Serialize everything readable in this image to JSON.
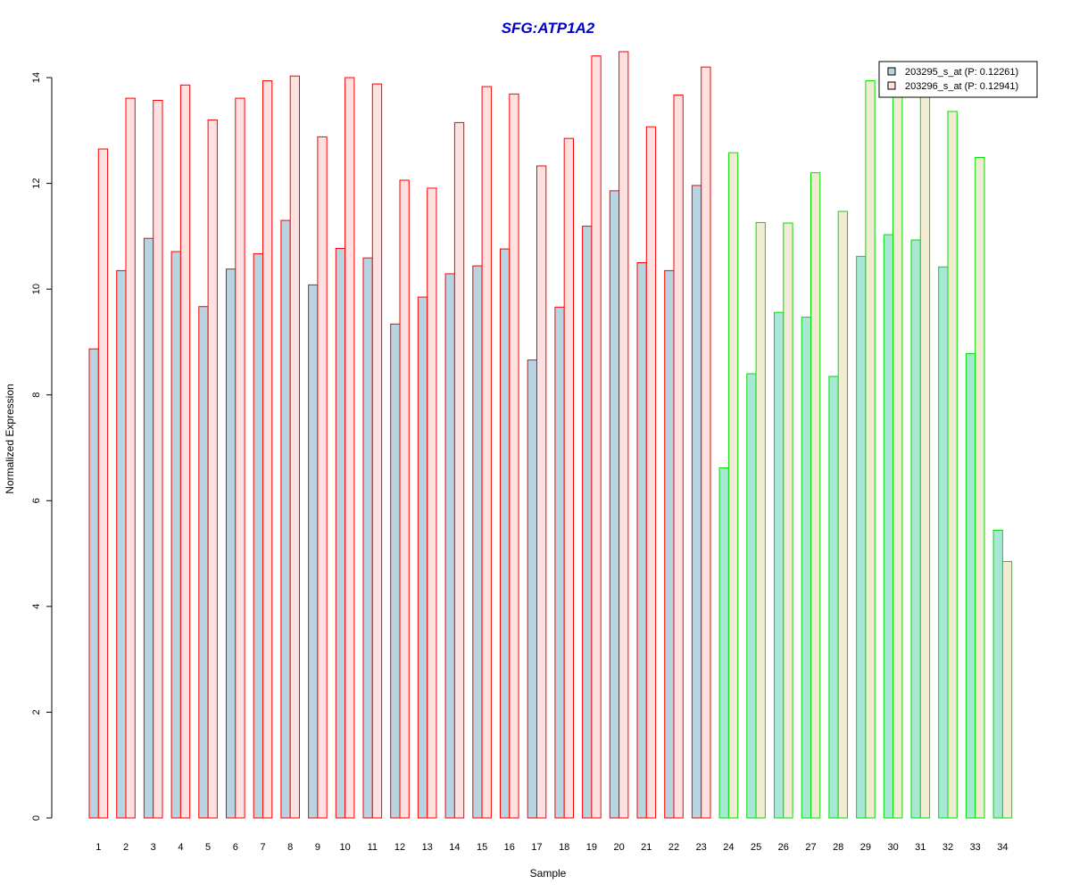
{
  "chart_data": {
    "type": "bar",
    "title": "SFG:ATP1A2",
    "xlabel": "Sample",
    "ylabel": "Normalized Expression",
    "ylim": [
      0,
      14.6
    ],
    "yticks": [
      0,
      2,
      4,
      6,
      8,
      10,
      12,
      14
    ],
    "categories": [
      "1",
      "2",
      "3",
      "4",
      "5",
      "6",
      "7",
      "8",
      "9",
      "10",
      "11",
      "12",
      "13",
      "14",
      "15",
      "16",
      "17",
      "18",
      "19",
      "20",
      "21",
      "22",
      "23",
      "24",
      "25",
      "26",
      "27",
      "28",
      "29",
      "30",
      "31",
      "32",
      "33",
      "34"
    ],
    "series": [
      {
        "name": "203295_s_at (P: 0.12261)",
        "values": [
          8.87,
          10.35,
          10.96,
          10.71,
          9.67,
          10.38,
          10.67,
          11.3,
          10.08,
          10.77,
          10.59,
          9.34,
          9.85,
          10.29,
          10.44,
          10.76,
          8.66,
          9.66,
          11.19,
          11.86,
          10.5,
          10.35,
          11.96,
          6.62,
          8.4,
          9.56,
          9.47,
          8.35,
          10.62,
          11.03,
          10.93,
          10.42,
          8.78,
          5.44
        ]
      },
      {
        "name": "203296_s_at (P: 0.12941)",
        "values": [
          12.65,
          13.61,
          13.57,
          13.86,
          13.2,
          13.61,
          13.94,
          14.03,
          12.88,
          14.0,
          13.88,
          12.06,
          11.91,
          13.15,
          13.83,
          13.69,
          12.33,
          12.85,
          14.41,
          14.49,
          13.07,
          13.67,
          14.2,
          12.58,
          11.26,
          11.25,
          12.2,
          11.47,
          13.94,
          13.7,
          13.65,
          13.36,
          12.49,
          4.85
        ]
      }
    ],
    "groups": [
      {
        "from_index": 0,
        "to_index": 22,
        "fills": [
          "#b7d4e0",
          "#fde1e1"
        ],
        "stroke": "#ff0000"
      },
      {
        "from_index": 23,
        "to_index": 33,
        "fills": [
          "#a8e6d6",
          "#f1ebd4"
        ],
        "stroke": "#00e000"
      }
    ],
    "legend_position": "top-right",
    "legend_fills": [
      "#b7d4e0",
      "#fde1e1"
    ],
    "title_color": "#0000cc",
    "grid": false
  }
}
